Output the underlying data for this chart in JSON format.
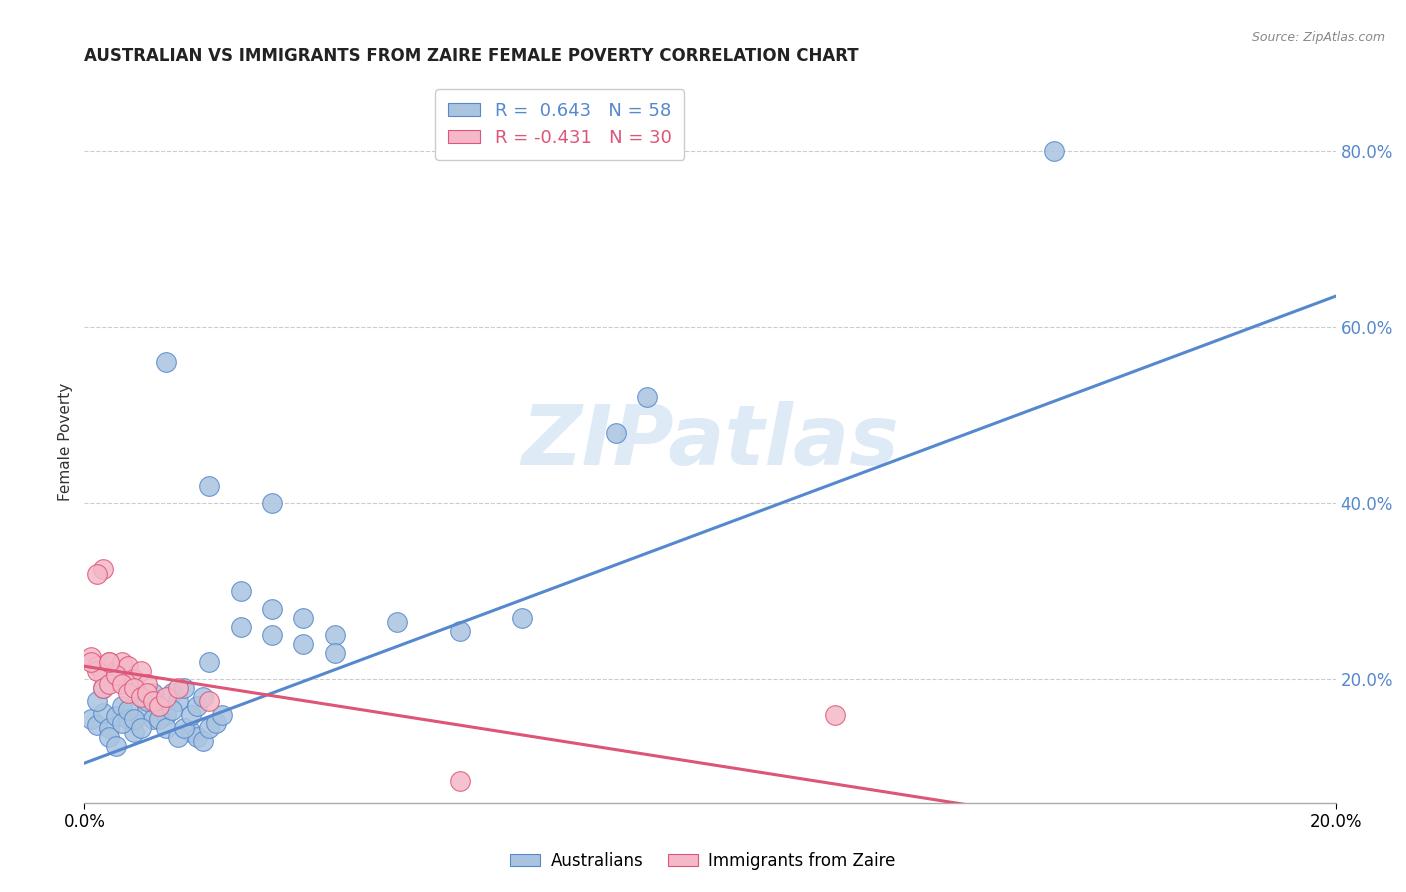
{
  "title": "AUSTRALIAN VS IMMIGRANTS FROM ZAIRE FEMALE POVERTY CORRELATION CHART",
  "source": "Source: ZipAtlas.com",
  "ylabel": "Female Poverty",
  "x_tick_labels": [
    "0.0%",
    "20.0%"
  ],
  "y_tick_labels": [
    "20.0%",
    "40.0%",
    "60.0%",
    "80.0%"
  ],
  "xlim": [
    0.0,
    0.2
  ],
  "ylim": [
    0.06,
    0.88
  ],
  "background_color": "#ffffff",
  "grid_color": "#cccccc",
  "watermark_text": "ZIPatlas",
  "legend_r1": "R =  0.643   N = 58",
  "legend_r2": "R = -0.431   N = 30",
  "blue_color": "#aac4e0",
  "pink_color": "#f4b8c8",
  "blue_edge_color": "#5588cc",
  "pink_edge_color": "#dd5577",
  "blue_scatter": [
    [
      0.001,
      0.155
    ],
    [
      0.002,
      0.148
    ],
    [
      0.003,
      0.162
    ],
    [
      0.004,
      0.145
    ],
    [
      0.005,
      0.158
    ],
    [
      0.006,
      0.17
    ],
    [
      0.007,
      0.155
    ],
    [
      0.008,
      0.14
    ],
    [
      0.009,
      0.18
    ],
    [
      0.01,
      0.165
    ],
    [
      0.011,
      0.155
    ],
    [
      0.012,
      0.17
    ],
    [
      0.013,
      0.16
    ],
    [
      0.014,
      0.185
    ],
    [
      0.015,
      0.175
    ],
    [
      0.016,
      0.19
    ],
    [
      0.017,
      0.14
    ],
    [
      0.018,
      0.135
    ],
    [
      0.019,
      0.13
    ],
    [
      0.02,
      0.145
    ],
    [
      0.021,
      0.15
    ],
    [
      0.022,
      0.16
    ],
    [
      0.002,
      0.175
    ],
    [
      0.003,
      0.19
    ],
    [
      0.004,
      0.135
    ],
    [
      0.005,
      0.125
    ],
    [
      0.006,
      0.15
    ],
    [
      0.007,
      0.165
    ],
    [
      0.008,
      0.155
    ],
    [
      0.009,
      0.145
    ],
    [
      0.01,
      0.175
    ],
    [
      0.011,
      0.185
    ],
    [
      0.012,
      0.155
    ],
    [
      0.013,
      0.145
    ],
    [
      0.014,
      0.165
    ],
    [
      0.015,
      0.135
    ],
    [
      0.016,
      0.145
    ],
    [
      0.017,
      0.16
    ],
    [
      0.018,
      0.17
    ],
    [
      0.019,
      0.18
    ],
    [
      0.02,
      0.22
    ],
    [
      0.025,
      0.26
    ],
    [
      0.03,
      0.28
    ],
    [
      0.035,
      0.27
    ],
    [
      0.04,
      0.25
    ],
    [
      0.05,
      0.265
    ],
    [
      0.06,
      0.255
    ],
    [
      0.07,
      0.27
    ],
    [
      0.025,
      0.3
    ],
    [
      0.03,
      0.25
    ],
    [
      0.035,
      0.24
    ],
    [
      0.04,
      0.23
    ],
    [
      0.013,
      0.56
    ],
    [
      0.03,
      0.4
    ],
    [
      0.02,
      0.42
    ],
    [
      0.085,
      0.48
    ],
    [
      0.09,
      0.52
    ],
    [
      0.155,
      0.8
    ]
  ],
  "pink_scatter": [
    [
      0.001,
      0.225
    ],
    [
      0.002,
      0.215
    ],
    [
      0.003,
      0.205
    ],
    [
      0.004,
      0.22
    ],
    [
      0.005,
      0.21
    ],
    [
      0.006,
      0.22
    ],
    [
      0.007,
      0.215
    ],
    [
      0.008,
      0.2
    ],
    [
      0.009,
      0.21
    ],
    [
      0.01,
      0.195
    ],
    [
      0.002,
      0.21
    ],
    [
      0.003,
      0.19
    ],
    [
      0.004,
      0.195
    ],
    [
      0.005,
      0.205
    ],
    [
      0.006,
      0.195
    ],
    [
      0.007,
      0.185
    ],
    [
      0.008,
      0.19
    ],
    [
      0.009,
      0.18
    ],
    [
      0.01,
      0.185
    ],
    [
      0.011,
      0.175
    ],
    [
      0.012,
      0.17
    ],
    [
      0.013,
      0.18
    ],
    [
      0.015,
      0.19
    ],
    [
      0.02,
      0.175
    ],
    [
      0.003,
      0.325
    ],
    [
      0.002,
      0.32
    ],
    [
      0.12,
      0.16
    ],
    [
      0.06,
      0.085
    ],
    [
      0.001,
      0.22
    ],
    [
      0.004,
      0.22
    ]
  ],
  "blue_trendline": [
    [
      0.0,
      0.105
    ],
    [
      0.2,
      0.635
    ]
  ],
  "pink_trendline": [
    [
      0.0,
      0.215
    ],
    [
      0.175,
      0.02
    ]
  ],
  "legend_blue_label": "Australians",
  "legend_pink_label": "Immigrants from Zaire"
}
